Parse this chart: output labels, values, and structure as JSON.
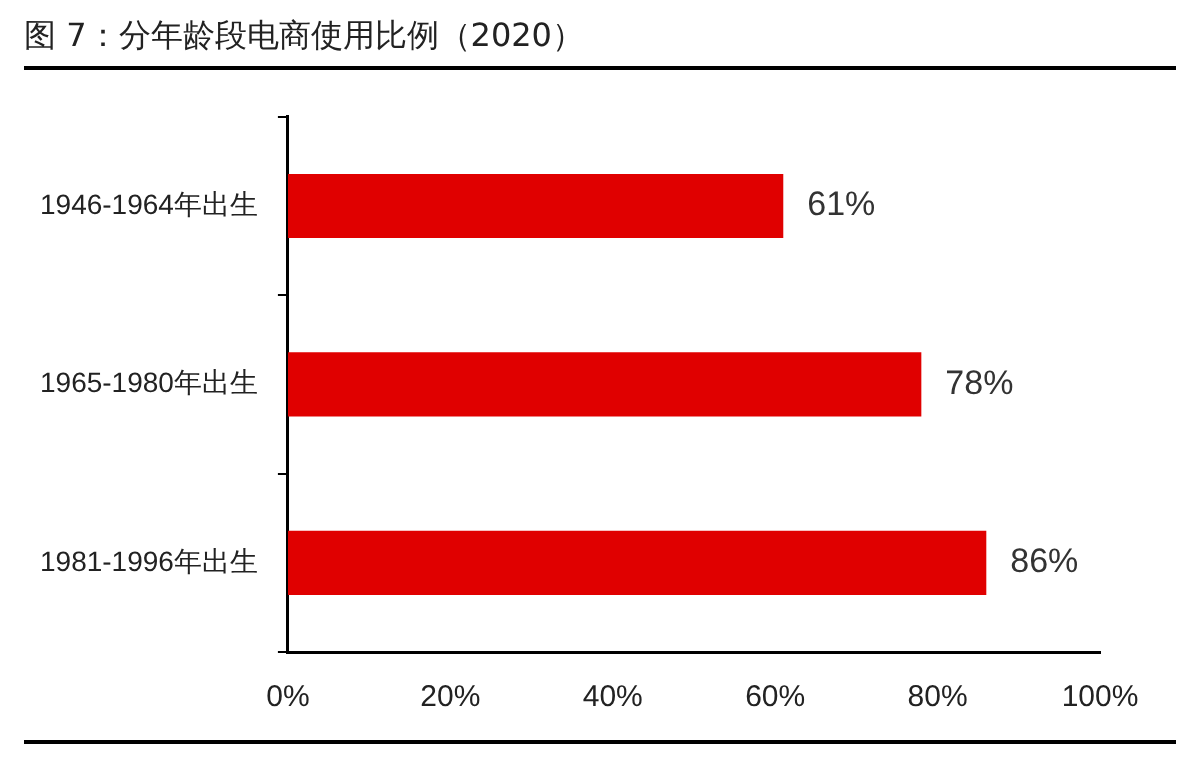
{
  "chart_data": {
    "type": "bar",
    "orientation": "horizontal",
    "title": "图 7：分年龄段电商使用比例（2020）",
    "categories": [
      "1946-1964年出生",
      "1965-1980年出生",
      "1981-1996年出生"
    ],
    "values": [
      61,
      78,
      86
    ],
    "color": "#e00000",
    "value_labels": [
      "61%",
      "78%",
      "86%"
    ],
    "xlim": [
      0,
      100
    ],
    "xticks": [
      {
        "value": 0,
        "label": "0%"
      },
      {
        "value": 20,
        "label": "20%"
      },
      {
        "value": 40,
        "label": "40%"
      },
      {
        "value": 60,
        "label": "60%"
      },
      {
        "value": 80,
        "label": "80%"
      },
      {
        "value": 100,
        "label": "100%"
      }
    ],
    "grid": false,
    "legend": false
  }
}
